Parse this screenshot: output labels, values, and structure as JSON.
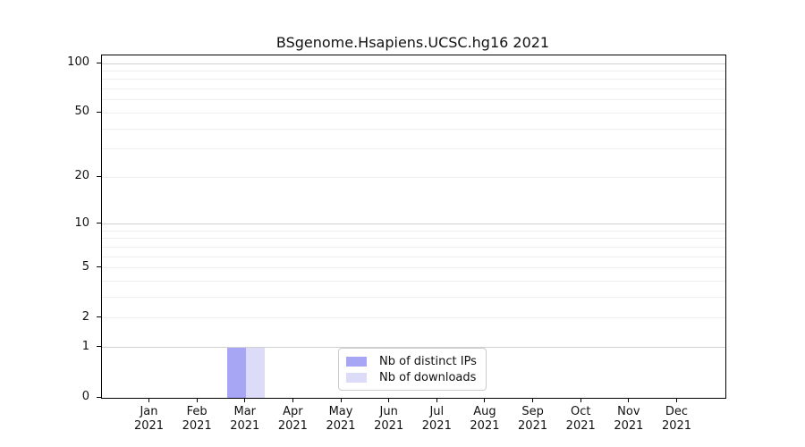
{
  "chart_data": {
    "type": "bar",
    "title": "BSgenome.Hsapiens.UCSC.hg16 2021",
    "categories": [
      {
        "month": "Jan",
        "year": "2021"
      },
      {
        "month": "Feb",
        "year": "2021"
      },
      {
        "month": "Mar",
        "year": "2021"
      },
      {
        "month": "Apr",
        "year": "2021"
      },
      {
        "month": "May",
        "year": "2021"
      },
      {
        "month": "Jun",
        "year": "2021"
      },
      {
        "month": "Jul",
        "year": "2021"
      },
      {
        "month": "Aug",
        "year": "2021"
      },
      {
        "month": "Sep",
        "year": "2021"
      },
      {
        "month": "Oct",
        "year": "2021"
      },
      {
        "month": "Nov",
        "year": "2021"
      },
      {
        "month": "Dec",
        "year": "2021"
      }
    ],
    "series": [
      {
        "name": "Nb of distinct IPs",
        "color": "#a6a6f4",
        "values": [
          0,
          0,
          1,
          0,
          0,
          0,
          0,
          0,
          0,
          0,
          0,
          0
        ]
      },
      {
        "name": "Nb of downloads",
        "color": "#dcdcf9",
        "values": [
          0,
          0,
          1,
          0,
          0,
          0,
          0,
          0,
          0,
          0,
          0,
          0
        ]
      }
    ],
    "xlabel": "",
    "ylabel": "",
    "y_scale": "log1p",
    "ylim": [
      0,
      100
    ],
    "y_ticks": [
      0,
      1,
      2,
      5,
      10,
      20,
      50,
      100
    ],
    "y_grid_major": [
      1,
      10,
      100
    ],
    "y_grid_minor": [
      2,
      3,
      4,
      5,
      6,
      7,
      8,
      9,
      20,
      30,
      40,
      50,
      60,
      70,
      80,
      90
    ],
    "grid": "on",
    "legend_position": "lower center (inside axes)",
    "colors": {
      "spine": "#000000",
      "grid_major": "#d0d0d0",
      "grid_minor": "#eeeeee",
      "legend_border": "#cccccc"
    }
  }
}
